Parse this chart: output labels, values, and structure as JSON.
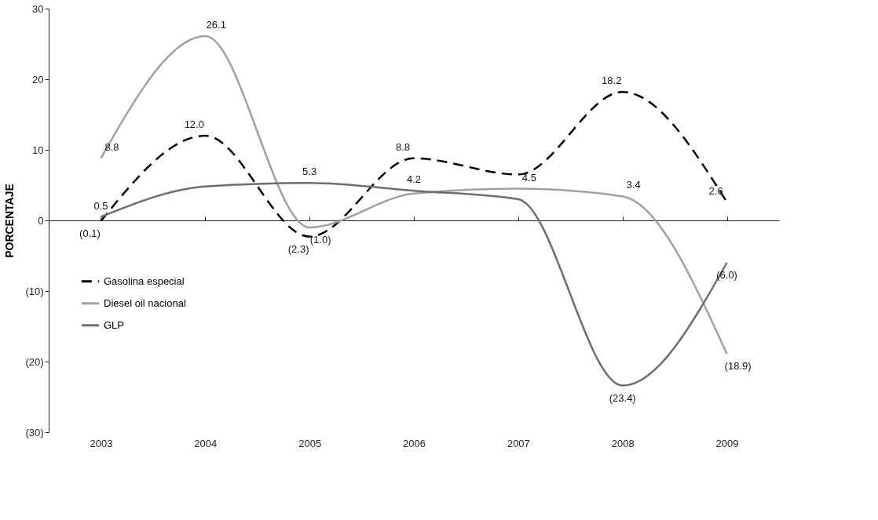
{
  "chart_data": {
    "type": "line",
    "ylabel": "PORCENTAJE",
    "categories": [
      "2003",
      "2004",
      "2005",
      "2006",
      "2007",
      "2008",
      "2009"
    ],
    "series": [
      {
        "name": "Gasolina especial",
        "color": "#000000",
        "line_style": "dashed",
        "values": [
          -0.1,
          12.0,
          -2.3,
          8.8,
          6.5,
          18.2,
          2.6
        ],
        "value_labels": [
          "(0.1)",
          "12.0",
          "(2.3)",
          "8.8",
          null,
          "18.2",
          "2.6"
        ]
      },
      {
        "name": "Diesel oil nacional",
        "color": "#a0a0a0",
        "line_style": "solid",
        "values": [
          8.8,
          26.1,
          -1.0,
          3.8,
          4.5,
          3.4,
          -18.9
        ],
        "value_labels": [
          "8.8",
          "26.1",
          "(1.0)",
          null,
          "4.5",
          "3.4",
          "(18.9)"
        ]
      },
      {
        "name": "GLP",
        "color": "#6e6e6e",
        "line_style": "solid",
        "values": [
          0.5,
          4.8,
          5.3,
          4.2,
          3.0,
          -23.4,
          -6.0
        ],
        "value_labels": [
          "0.5",
          null,
          "5.3",
          "4.2",
          null,
          "(23.4)",
          "(6.0)"
        ]
      }
    ],
    "ylim": [
      -30,
      30
    ],
    "yticks": [
      {
        "value": -30,
        "label": "(30)"
      },
      {
        "value": -20,
        "label": "(20)"
      },
      {
        "value": -10,
        "label": "(10)"
      },
      0,
      10,
      20,
      30
    ],
    "legend": "left",
    "marker": "none"
  }
}
